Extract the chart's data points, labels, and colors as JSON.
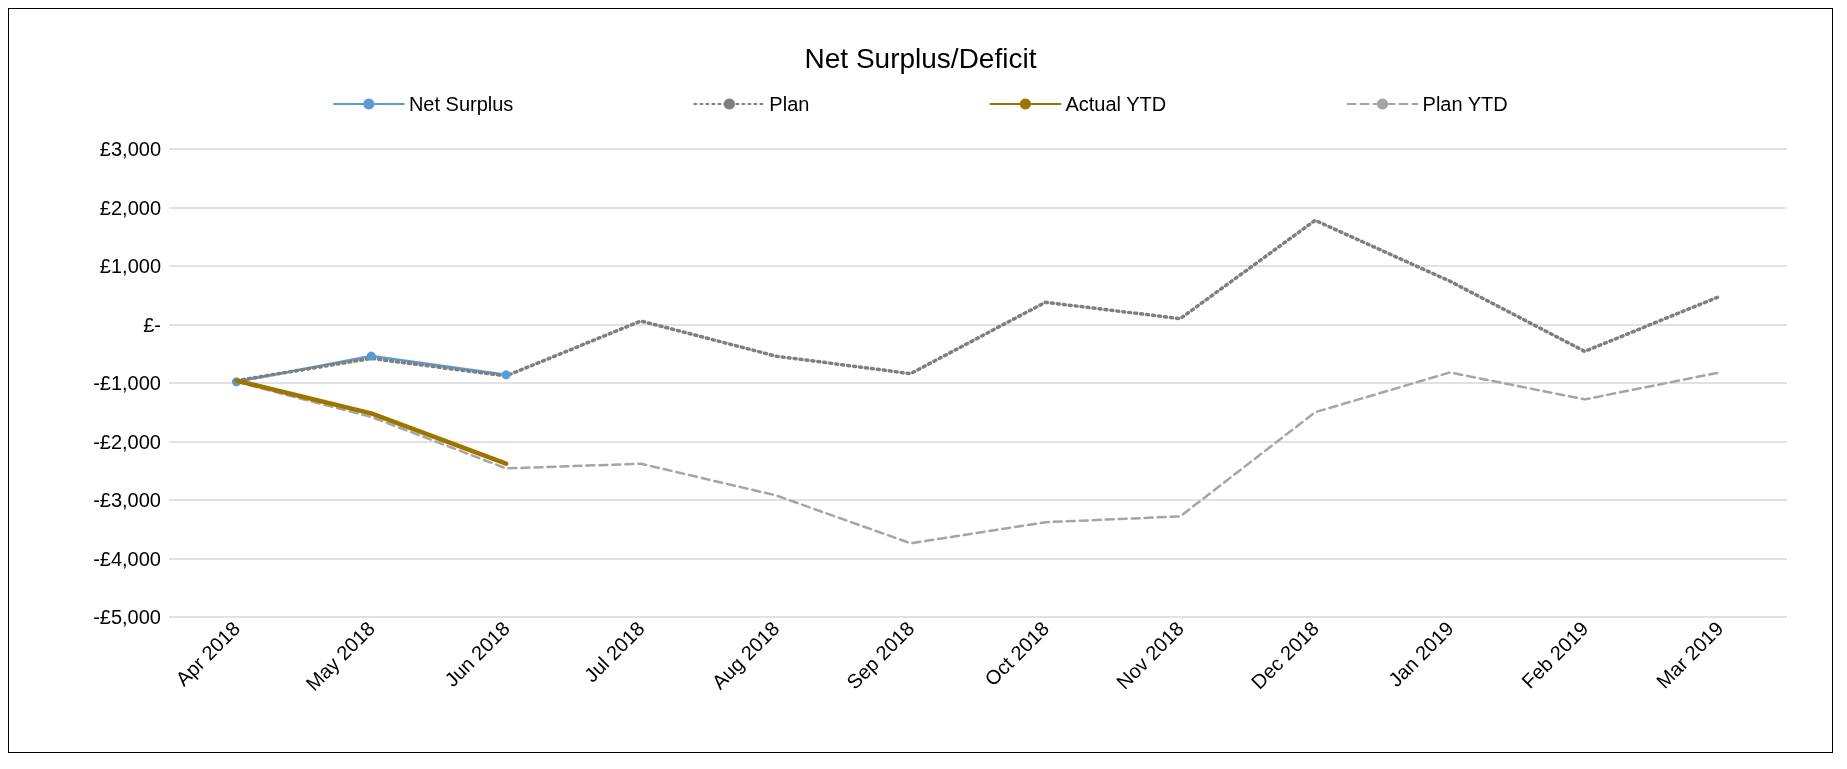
{
  "chart_data": {
    "type": "line",
    "title": "Net Surplus/Deficit",
    "categories": [
      "Apr 2018",
      "May 2018",
      "Jun 2018",
      "Jul 2018",
      "Aug 2018",
      "Sep 2018",
      "Oct 2018",
      "Nov 2018",
      "Dec 2018",
      "Jan 2019",
      "Feb 2019",
      "Mar 2019"
    ],
    "series": [
      {
        "name": "Net Surplus",
        "color": "#5b9bd5",
        "marker": "circle",
        "line_style": "solid",
        "values": [
          -980,
          -540,
          -860,
          null,
          null,
          null,
          null,
          null,
          null,
          null,
          null,
          null
        ]
      },
      {
        "name": "Plan",
        "color": "#7f7f7f",
        "marker": "none",
        "line_style": "dotted",
        "values": [
          -960,
          -580,
          -880,
          60,
          -540,
          -840,
          380,
          100,
          1780,
          740,
          -460,
          480
        ]
      },
      {
        "name": "Actual YTD",
        "color": "#9e7400",
        "marker": "none",
        "line_style": "solid",
        "values": [
          -960,
          -1520,
          -2380,
          null,
          null,
          null,
          null,
          null,
          null,
          null,
          null,
          null
        ]
      },
      {
        "name": "Plan YTD",
        "color": "#a5a5a5",
        "marker": "none",
        "line_style": "dashed",
        "values": [
          -980,
          -1580,
          -2460,
          -2380,
          -2920,
          -3740,
          -3380,
          -3280,
          -1500,
          -820,
          -1280,
          -820
        ]
      }
    ],
    "ylim": [
      -5000,
      3000
    ],
    "yticks": [
      {
        "value": -5000,
        "label": "-£5,000"
      },
      {
        "value": -4000,
        "label": "-£4,000"
      },
      {
        "value": -3000,
        "label": "-£3,000"
      },
      {
        "value": -2000,
        "label": "-£2,000"
      },
      {
        "value": -1000,
        "label": "-£1,000"
      },
      {
        "value": 0,
        "label": "£-"
      },
      {
        "value": 1000,
        "label": "£1,000"
      },
      {
        "value": 2000,
        "label": "£2,000"
      },
      {
        "value": 3000,
        "label": "£3,000"
      }
    ],
    "grid": "y",
    "legend": "top"
  }
}
